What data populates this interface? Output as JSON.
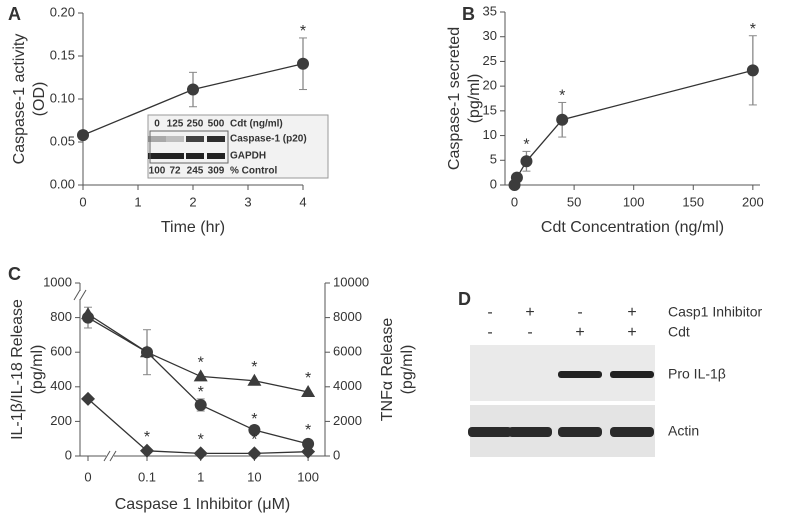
{
  "chart_data": [
    {
      "type": "line",
      "panel": "A",
      "xlabel": "Time (hr)",
      "ylabel": [
        "Caspase-1 activity",
        "(OD)"
      ],
      "x": [
        0,
        2,
        4
      ],
      "series": [
        {
          "color": "#3c3c3c",
          "marker": "circle",
          "values": [
            0.058,
            0.111,
            0.141
          ],
          "errors": [
            null,
            0.02,
            0.03
          ],
          "significant": [
            false,
            false,
            true
          ]
        }
      ],
      "sig_label": "*",
      "xlim": [
        0,
        4
      ],
      "ylim": [
        0,
        0.2
      ],
      "xticks": [
        0,
        1,
        2,
        3,
        4
      ],
      "yticks": [
        {
          "value": 0,
          "label": "0.00"
        },
        0.05,
        {
          "value": 0.1,
          "label": "0.10"
        },
        0.15,
        {
          "value": 0.2,
          "label": "0.20"
        }
      ],
      "inset": {
        "top_labels": [
          "0",
          "125",
          "250",
          "500"
        ],
        "top_caption": "Cdt (ng/ml)",
        "bands": [
          "Caspase-1 (p20)",
          "GAPDH"
        ],
        "bottom_labels": [
          "100",
          "72",
          "245",
          "309"
        ],
        "bottom_caption": "% Control"
      }
    },
    {
      "type": "line",
      "panel": "B",
      "xlabel": "Cdt Concentration (ng/ml)",
      "ylabel": [
        "Caspase-1  secreted",
        "(pg/ml)"
      ],
      "x": [
        0,
        2,
        10,
        40,
        200
      ],
      "series": [
        {
          "color": "#3c3c3c",
          "marker": "circle",
          "values": [
            0,
            1.5,
            4.8,
            13.2,
            23.2
          ],
          "errors": [
            null,
            null,
            2,
            3.5,
            7
          ],
          "significant": [
            false,
            false,
            true,
            true,
            true
          ]
        }
      ],
      "sig_label": "*",
      "xlim": [
        -8,
        206
      ],
      "ylim": [
        0,
        35
      ],
      "xticks": [
        0,
        50,
        100,
        150,
        200
      ],
      "yticks": [
        0,
        5,
        10,
        15,
        20,
        25,
        30,
        35
      ]
    },
    {
      "type": "line",
      "panel": "C",
      "xlabel": "Caspase 1 Inhibitor (μM)",
      "ylabel": [
        "IL-1β/IL-18 Release",
        "(pg/ml)"
      ],
      "y2label": [
        "TNFα Release",
        "(pg/ml)"
      ],
      "categories": [
        "0",
        "0.1",
        "1",
        "10",
        "100"
      ],
      "series": [
        {
          "color": "#3c3c3c",
          "marker": "circle",
          "values": [
            800,
            600,
            295,
            150,
            70
          ],
          "errors": [
            60,
            130,
            35,
            25,
            null
          ],
          "significant": [
            false,
            false,
            true,
            true,
            true
          ]
        },
        {
          "color": "#3c3c3c",
          "marker": "triangle",
          "axis": "y2",
          "values": [
            8200,
            6000,
            4600,
            4350,
            3700
          ],
          "errors": [
            null,
            null,
            null,
            null,
            null
          ],
          "significant": [
            false,
            false,
            true,
            true,
            true
          ]
        },
        {
          "color": "#3c3c3c",
          "marker": "diamond",
          "values": [
            330,
            30,
            15,
            15,
            25
          ],
          "errors": [
            null,
            null,
            null,
            null,
            null
          ],
          "significant": [
            false,
            true,
            true,
            true,
            false
          ]
        }
      ],
      "sig_label": "*",
      "ylim": [
        0,
        1000
      ],
      "yticks": [
        0,
        200,
        400,
        600,
        800,
        1000
      ],
      "y2lim": [
        0,
        10000
      ],
      "y2ticks": [
        0,
        2000,
        4000,
        6000,
        8000,
        10000
      ]
    },
    {
      "type": "blot",
      "panel": "D",
      "rows": [
        {
          "label": "Casp1 Inhibitor",
          "values": [
            "-",
            "+",
            "-",
            "+"
          ]
        },
        {
          "label": "Cdt",
          "values": [
            "-",
            "-",
            "+",
            "+"
          ]
        }
      ],
      "bands": [
        "Pro IL-1β",
        "Actin"
      ]
    }
  ]
}
